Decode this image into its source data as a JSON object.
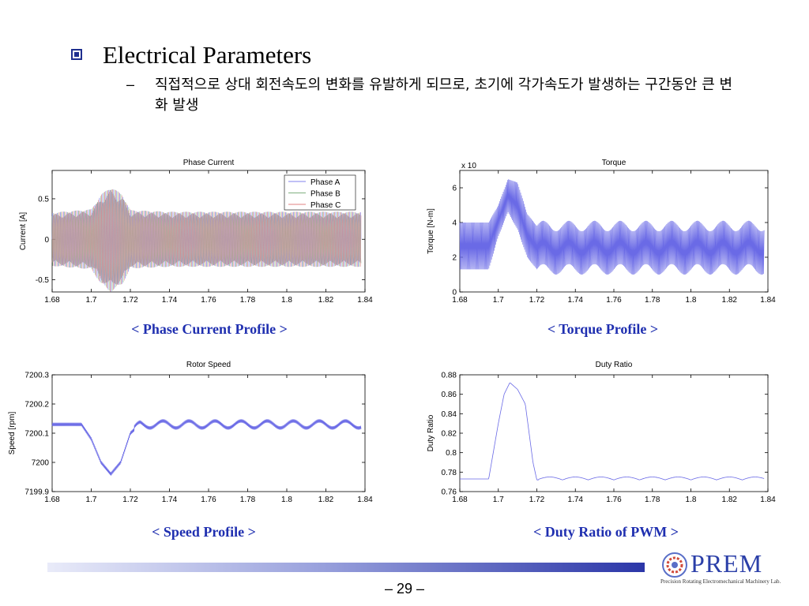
{
  "slide": {
    "title": "Electrical Parameters",
    "dash": "–",
    "subtitle": "직접적으로 상대 회전속도의 변화를 유발하게 되므로, 초기에 각가속도가 발생하는 구간동안 큰 변화 발생",
    "page_number": "– 29 –",
    "colors": {
      "bullet": "#1f2f8f",
      "caption": "#1f2fb0",
      "logo": "#2b3fa8"
    }
  },
  "captions": {
    "phase_current": "< Phase Current Profile >",
    "torque": "< Torque Profile >",
    "speed": "< Speed Profile >",
    "duty": "< Duty Ratio of PWM >"
  },
  "logo": {
    "name": "PREM",
    "tagline": "Precision Rotating Electromechanical Machinery Lab."
  },
  "chart_data": [
    {
      "type": "line",
      "title": "Phase Current",
      "xlabel": "",
      "ylabel": "Current [A]",
      "xlim": [
        1.68,
        1.84
      ],
      "ylim": [
        -0.65,
        0.85
      ],
      "xticks": [
        "1.68",
        "1.7",
        "1.72",
        "1.74",
        "1.76",
        "1.78",
        "1.8",
        "1.82",
        "1.84"
      ],
      "yticks": [
        "-0.5",
        "0",
        "0.5"
      ],
      "legend": "top-right",
      "series": [
        {
          "name": "Phase A",
          "color": "#8080ee"
        },
        {
          "name": "Phase B",
          "color": "#80b080"
        },
        {
          "name": "Phase C",
          "color": "#e08080"
        }
      ],
      "envelope": {
        "x": [
          1.68,
          1.7,
          1.705,
          1.71,
          1.716,
          1.72,
          1.74,
          1.76,
          1.78,
          1.8,
          1.82,
          1.84
        ],
        "amplitude": [
          0.33,
          0.37,
          0.55,
          0.65,
          0.55,
          0.36,
          0.34,
          0.34,
          0.34,
          0.34,
          0.34,
          0.34
        ]
      }
    },
    {
      "type": "line",
      "title": "Torque",
      "scale_label": "x 10",
      "xlabel": "",
      "ylabel": "Torque [N-m]",
      "xlim": [
        1.68,
        1.84
      ],
      "ylim": [
        0,
        7
      ],
      "xticks": [
        "1.68",
        "1.7",
        "1.72",
        "1.74",
        "1.76",
        "1.78",
        "1.8",
        "1.82",
        "1.84"
      ],
      "yticks": [
        "0",
        "2",
        "4",
        "6"
      ],
      "series": [
        {
          "name": "",
          "color": "#6a6ae6",
          "upper": {
            "x": [
              1.68,
              1.695,
              1.7,
              1.705,
              1.71,
              1.715,
              1.72,
              1.84
            ],
            "y": [
              4.0,
              4.0,
              5.0,
              6.5,
              6.3,
              4.5,
              3.8,
              3.8
            ]
          },
          "lower": {
            "x": [
              1.68,
              1.695,
              1.7,
              1.705,
              1.71,
              1.715,
              1.72,
              1.84
            ],
            "y": [
              1.3,
              1.3,
              3.2,
              4.6,
              3.6,
              2.0,
              1.3,
              1.3
            ]
          }
        }
      ]
    },
    {
      "type": "line",
      "title": "Rotor Speed",
      "xlabel": "",
      "ylabel": "Speed [rpm]",
      "xlim": [
        1.68,
        1.84
      ],
      "ylim": [
        7199.9,
        7200.3
      ],
      "xticks": [
        "1.68",
        "1.7",
        "1.72",
        "1.74",
        "1.76",
        "1.78",
        "1.8",
        "1.82",
        "1.84"
      ],
      "yticks": [
        "7199.9",
        "7200",
        "7200.1",
        "7200.2",
        "7200.3"
      ],
      "series": [
        {
          "name": "",
          "color": "#6a6ae6",
          "x": [
            1.68,
            1.695,
            1.7,
            1.705,
            1.71,
            1.715,
            1.72,
            1.725,
            1.84
          ],
          "y": [
            7200.13,
            7200.13,
            7200.08,
            7200.0,
            7199.96,
            7200.0,
            7200.1,
            7200.13,
            7200.13
          ]
        }
      ]
    },
    {
      "type": "line",
      "title": "Duty Ratio",
      "xlabel": "",
      "ylabel": "Duty Ratio",
      "xlim": [
        1.68,
        1.84
      ],
      "ylim": [
        0.76,
        0.88
      ],
      "xticks": [
        "1.68",
        "1.7",
        "1.72",
        "1.74",
        "1.76",
        "1.78",
        "1.8",
        "1.82",
        "1.84"
      ],
      "yticks": [
        "0.76",
        "0.78",
        "0.8",
        "0.82",
        "0.84",
        "0.86",
        "0.88"
      ],
      "series": [
        {
          "name": "",
          "color": "#6a6ae6",
          "x": [
            1.68,
            1.695,
            1.7,
            1.703,
            1.706,
            1.71,
            1.714,
            1.718,
            1.72,
            1.84
          ],
          "y": [
            0.773,
            0.773,
            0.83,
            0.86,
            0.872,
            0.865,
            0.85,
            0.79,
            0.772,
            0.772
          ]
        }
      ]
    }
  ]
}
